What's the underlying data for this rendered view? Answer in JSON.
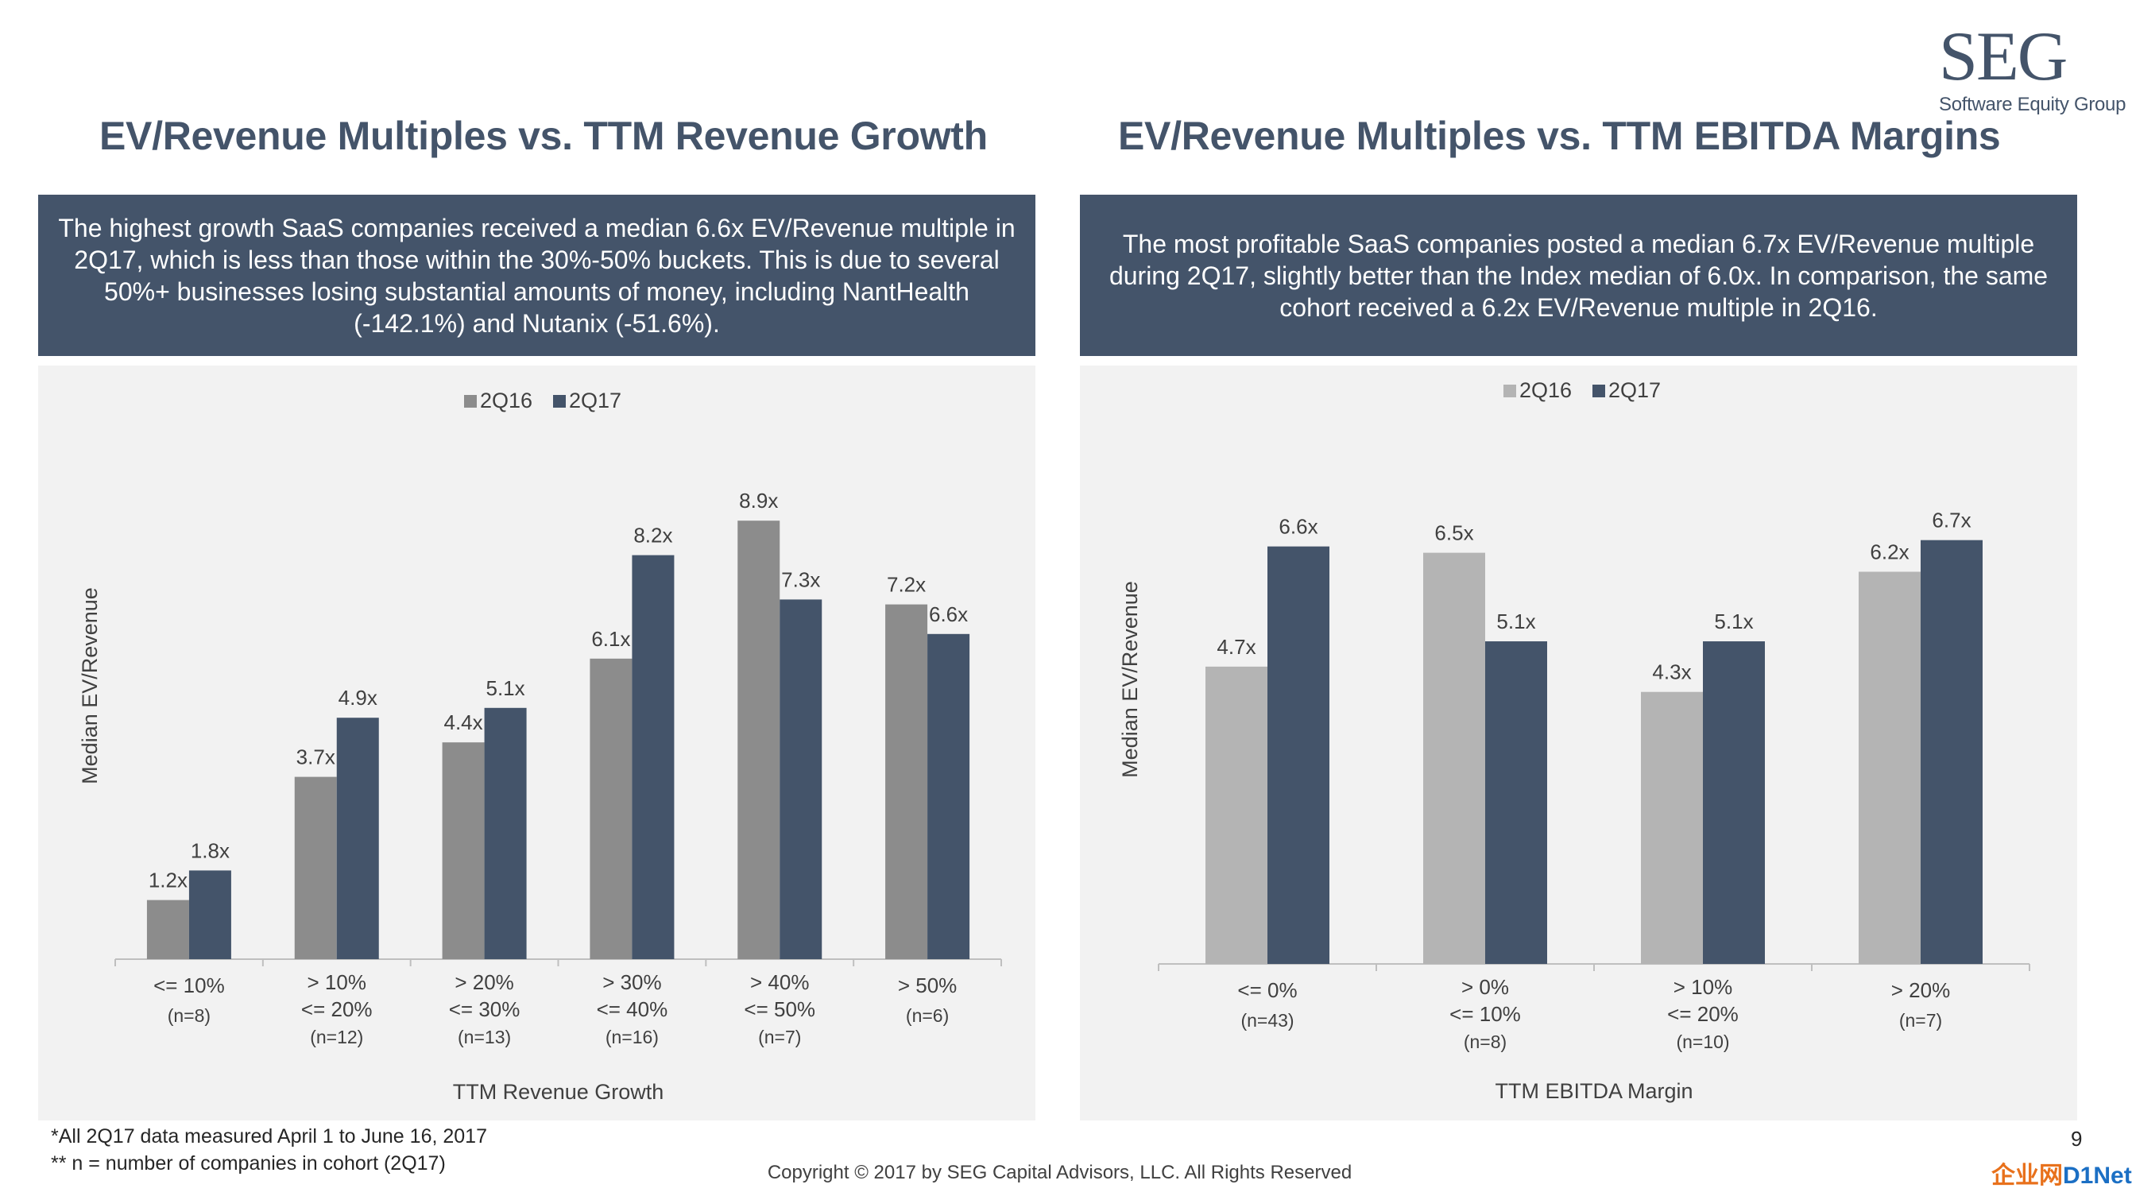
{
  "logo": {
    "main": "SEG",
    "sub": "Software Equity Group"
  },
  "left": {
    "title": "EV/Revenue Multiples vs. TTM Revenue Growth",
    "description": "The highest growth SaaS companies received a median 6.6x EV/Revenue multiple in 2Q17, which is less than those within the 30%-50% buckets. This is due to several 50%+ businesses losing substantial amounts of money, including NantHealth (-142.1%) and Nutanix (-51.6%)."
  },
  "right": {
    "title": "EV/Revenue Multiples vs. TTM EBITDA Margins",
    "description": "The most profitable SaaS companies posted a median 6.7x EV/Revenue multiple during 2Q17, slightly better than the Index median of 6.0x. In comparison, the same cohort received a 6.2x EV/Revenue multiple in 2Q16."
  },
  "chart_data": [
    {
      "type": "bar",
      "title": "EV/Revenue Multiples vs. TTM Revenue Growth",
      "categories": [
        [
          "<= 10%",
          "(n=8)"
        ],
        [
          "> 10%",
          "<= 20%",
          "(n=12)"
        ],
        [
          "> 20%",
          "<= 30%",
          "(n=13)"
        ],
        [
          "> 30%",
          "<= 40%",
          "(n=16)"
        ],
        [
          "> 40%",
          "<= 50%",
          "(n=7)"
        ],
        [
          "> 50%",
          "(n=6)"
        ]
      ],
      "series": [
        {
          "name": "2Q16",
          "color": "#8c8c8c",
          "values": [
            1.2,
            3.7,
            4.4,
            6.1,
            8.9,
            7.2
          ],
          "labels": [
            "1.2x",
            "3.7x",
            "4.4x",
            "6.1x",
            "8.9x",
            "7.2x"
          ]
        },
        {
          "name": "2Q17",
          "color": "#44546a",
          "values": [
            1.8,
            4.9,
            5.1,
            8.2,
            7.3,
            6.6
          ],
          "labels": [
            "1.8x",
            "4.9x",
            "5.1x",
            "8.2x",
            "7.3x",
            "6.6x"
          ]
        }
      ],
      "xlabel": "TTM Revenue Growth",
      "ylabel": "Median EV/Revenue",
      "ylim": [
        0,
        10
      ],
      "grid": false,
      "legend": "top-center"
    },
    {
      "type": "bar",
      "title": "EV/Revenue Multiples vs. TTM EBITDA Margins",
      "categories": [
        [
          "<= 0%",
          "(n=43)"
        ],
        [
          "> 0%",
          "<= 10%",
          "(n=8)"
        ],
        [
          "> 10%",
          "<= 20%",
          "(n=10)"
        ],
        [
          "> 20%",
          "(n=7)"
        ]
      ],
      "series": [
        {
          "name": "2Q16",
          "color": "#b4b4b4",
          "values": [
            4.7,
            6.5,
            4.3,
            6.2
          ],
          "labels": [
            "4.7x",
            "6.5x",
            "4.3x",
            "6.2x"
          ]
        },
        {
          "name": "2Q17",
          "color": "#44546a",
          "values": [
            6.6,
            5.1,
            5.1,
            6.7
          ],
          "labels": [
            "6.6x",
            "5.1x",
            "5.1x",
            "6.7x"
          ]
        }
      ],
      "xlabel": "TTM EBITDA Margin",
      "ylabel": "Median EV/Revenue",
      "ylim": [
        0,
        7.5
      ],
      "grid": false,
      "legend": "top-center"
    }
  ],
  "footnotes": [
    "*All 2Q17 data measured April 1 to June 16, 2017",
    "** n = number of companies in cohort (2Q17)"
  ],
  "copyright": "Copyright © 2017 by SEG Capital Advisors, LLC. All Rights Reserved",
  "page_number": "9",
  "watermark": {
    "part1": "企业网",
    "part2": "D1Net"
  }
}
